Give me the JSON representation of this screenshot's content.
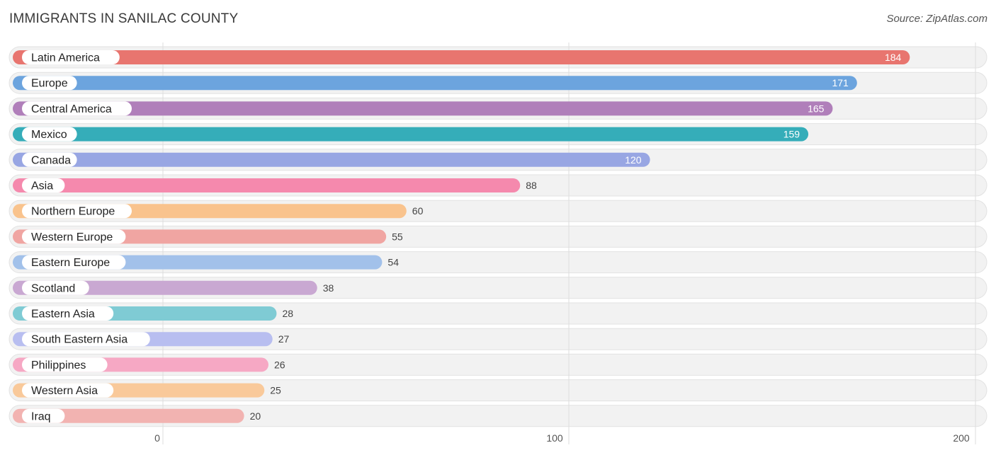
{
  "header": {
    "title": "IMMIGRANTS IN SANILAC COUNTY",
    "source": "Source: ZipAtlas.com"
  },
  "chart_data": {
    "type": "bar",
    "orientation": "horizontal",
    "title": "IMMIGRANTS IN SANILAC COUNTY",
    "categories": [
      "Latin America",
      "Europe",
      "Central America",
      "Mexico",
      "Canada",
      "Asia",
      "Northern Europe",
      "Western Europe",
      "Eastern Europe",
      "Scotland",
      "Eastern Asia",
      "South Eastern Asia",
      "Philippines",
      "Western Asia",
      "Iraq"
    ],
    "values": [
      184,
      171,
      165,
      159,
      120,
      88,
      60,
      55,
      54,
      38,
      28,
      27,
      26,
      25,
      20
    ],
    "colors": [
      "#e8756f",
      "#6ca4de",
      "#b07fba",
      "#35adb9",
      "#98a6e3",
      "#f589ad",
      "#f9c38d",
      "#f0a5a2",
      "#a2c1ea",
      "#c9a8d2",
      "#7fcbd4",
      "#b8bef0",
      "#f6a8c4",
      "#f9c99a",
      "#f2b3b1"
    ],
    "xlim": [
      0,
      200
    ],
    "xticks": [
      "0",
      "100",
      "200"
    ],
    "grid": true
  }
}
